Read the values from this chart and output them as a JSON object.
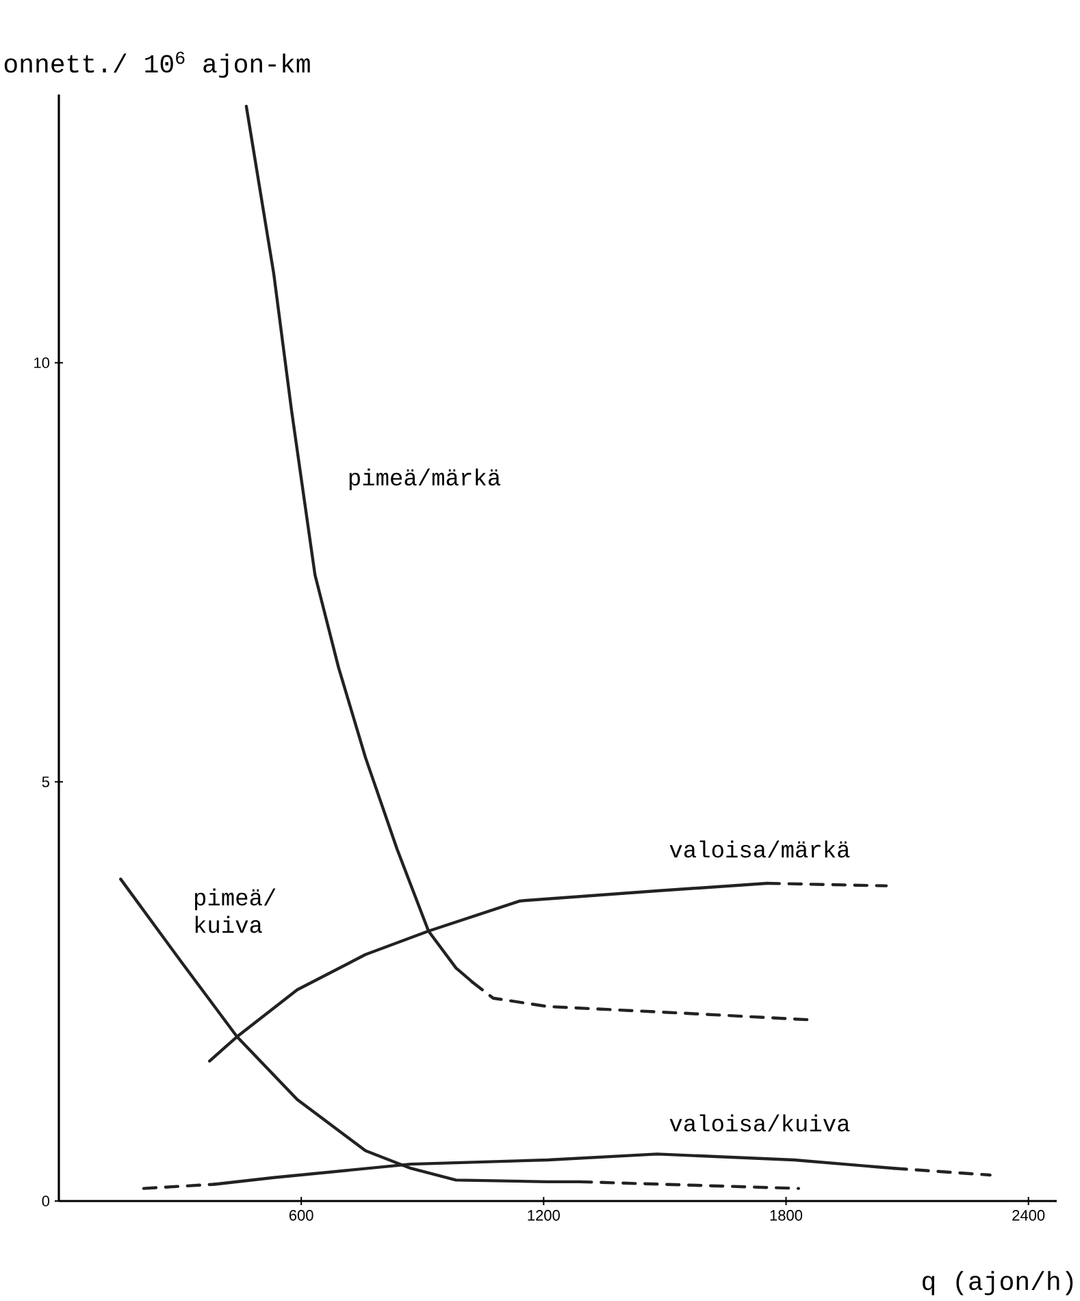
{
  "chart_data": {
    "type": "line",
    "ylabel": "onnett./ 10$^{6}$ ajon-km",
    "xlabel": "q (ajon/h)",
    "xlim": [
      0,
      2470
    ],
    "ylim": [
      0,
      13.2
    ],
    "xticks": [
      600,
      1200,
      1800,
      2400
    ],
    "yticks": [
      0,
      5,
      10
    ],
    "series": [
      {
        "color": "#222222",
        "line_style": "solid",
        "x": [
          464,
          532,
          576,
          634,
          692,
          759,
          837,
          915,
          983,
          1024
        ],
        "values": [
          13.06,
          11.06,
          9.43,
          7.47,
          6.37,
          5.29,
          4.2,
          3.22,
          2.78,
          2.61
        ]
      },
      {
        "color": "#222222",
        "line_style": "dashed",
        "x": [
          1024,
          1075,
          1210,
          1549,
          1865
        ],
        "values": [
          2.61,
          2.42,
          2.32,
          2.24,
          2.16
        ]
      },
      {
        "color": "#222222",
        "line_style": "solid",
        "x": [
          153,
          305,
          441,
          590,
          759,
          871,
          983,
          1210,
          1288
        ],
        "values": [
          3.84,
          2.84,
          1.96,
          1.21,
          0.6,
          0.39,
          0.25,
          0.23,
          0.23
        ]
      },
      {
        "color": "#222222",
        "line_style": "dashed",
        "x": [
          1288,
          1831
        ],
        "values": [
          0.23,
          0.15
        ]
      },
      {
        "color": "#222222",
        "line_style": "solid",
        "x": [
          373,
          441,
          590,
          759,
          915,
          1142,
          1481,
          1753
        ],
        "values": [
          1.67,
          1.96,
          2.52,
          2.94,
          3.22,
          3.58,
          3.7,
          3.79
        ]
      },
      {
        "color": "#222222",
        "line_style": "dashed",
        "x": [
          1753,
          2048
        ],
        "values": [
          3.79,
          3.76
        ]
      },
      {
        "color": "#222222",
        "line_style": "dashed",
        "x": [
          210,
          386
        ],
        "values": [
          0.15,
          0.2
        ]
      },
      {
        "color": "#222222",
        "line_style": "solid",
        "x": [
          386,
          532,
          871,
          1210,
          1481,
          1820,
          2068
        ],
        "values": [
          0.2,
          0.28,
          0.44,
          0.49,
          0.56,
          0.49,
          0.39
        ]
      },
      {
        "color": "#222222",
        "line_style": "dashed",
        "x": [
          2068,
          2305
        ],
        "values": [
          0.39,
          0.31
        ]
      }
    ],
    "annotations": [
      "pimeä/märkä",
      "pimeä/ kuiva",
      "valoisa/märkä",
      "valoisa/kuiva"
    ]
  }
}
